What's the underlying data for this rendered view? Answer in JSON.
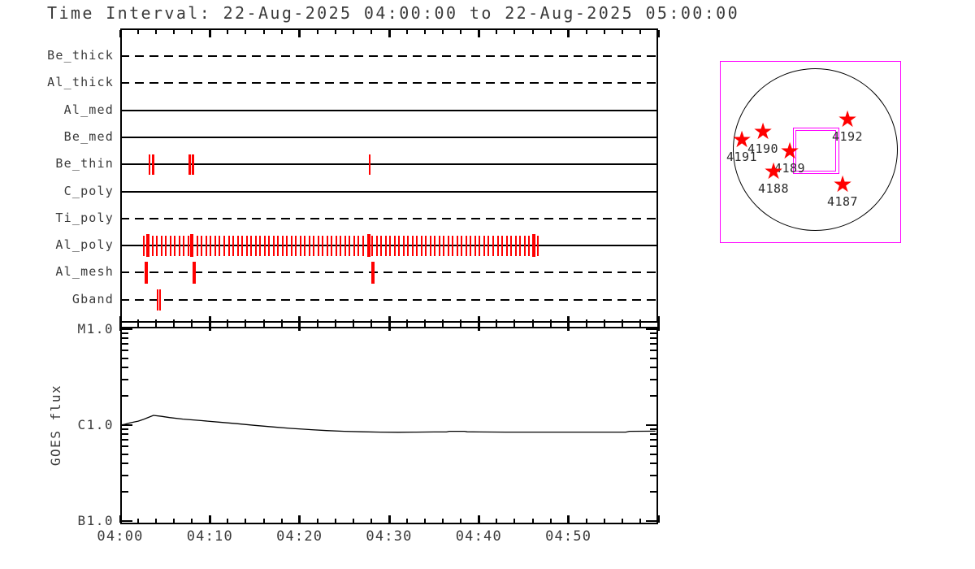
{
  "title": "Time Interval: 22-Aug-2025 04:00:00 to 22-Aug-2025 05:00:00",
  "colors": {
    "background": "#ffffff",
    "axis": "#000000",
    "exposure_tick": "#ff0000",
    "fov_box": "#ff00ff",
    "star": "#ff0000"
  },
  "icons": {
    "active_region_star": "★"
  },
  "chart_data": [
    {
      "type": "table",
      "name": "xrt_filter_timeline",
      "x_axis": {
        "start": "04:00",
        "end": "05:00",
        "duration_min": 60,
        "major_tick_step_min": 10,
        "minor_tick_step_min": 2,
        "tick_labels": [
          "04:00",
          "04:10",
          "04:20",
          "04:30",
          "04:40",
          "04:50"
        ]
      },
      "rows": [
        {
          "label": "Be_thick",
          "line_style": "dashed",
          "events_min": []
        },
        {
          "label": "Al_thick",
          "line_style": "dashed",
          "events_min": []
        },
        {
          "label": "Al_med",
          "line_style": "solid",
          "events_min": []
        },
        {
          "label": "Be_med",
          "line_style": "solid",
          "events_min": []
        },
        {
          "label": "Be_thin",
          "line_style": "solid",
          "events_min": [
            3.26,
            3.65,
            7.73,
            8.1,
            27.83
          ],
          "tick_w": 2.5,
          "tick_h": 25
        },
        {
          "label": "C_poly",
          "line_style": "solid",
          "events_min": []
        },
        {
          "label": "Ti_poly",
          "line_style": "dashed",
          "events_min": []
        },
        {
          "label": "Al_poly",
          "line_style": "solid",
          "events_min": [],
          "event_train": {
            "start_min": 2.6,
            "end_min": 46.6,
            "step_min": 0.5
          },
          "thick_events_min": [
            3.1,
            8.0,
            27.7,
            46.1
          ],
          "tick_w": 2,
          "tick_h": 25,
          "thick_tick_w": 4,
          "thick_tick_h": 28
        },
        {
          "label": "Al_mesh",
          "line_style": "dashed",
          "events_min": [
            2.9,
            8.25,
            28.19
          ],
          "tick_w": 4,
          "tick_h": 27
        },
        {
          "label": "Gband",
          "line_style": "dashed",
          "events_min": [
            4.17,
            4.44
          ],
          "tick_w": 2,
          "tick_h": 26
        }
      ]
    },
    {
      "type": "line",
      "name": "goes_flux",
      "ylabel": "GOES flux",
      "yscale": "log",
      "ytick_labels": [
        "M1.0",
        "C1.0",
        "B1.0"
      ],
      "ytick_flux_c": [
        10,
        1,
        0.1
      ],
      "yminor_flux_c": [
        9,
        8,
        7,
        6,
        5,
        4,
        3,
        2,
        0.9,
        0.8,
        0.7,
        0.6,
        0.5,
        0.4,
        0.3,
        0.2
      ],
      "xlabel_ticks": [
        "04:00",
        "04:10",
        "04:20",
        "04:30",
        "04:40",
        "04:50"
      ],
      "series_units": "[minutes after 04:00, flux in C-class units]",
      "series": [
        [
          0,
          1.0
        ],
        [
          0.5,
          1.02
        ],
        [
          1,
          1.05
        ],
        [
          1.5,
          1.075
        ],
        [
          2,
          1.1
        ],
        [
          2.5,
          1.14
        ],
        [
          3,
          1.19
        ],
        [
          3.7,
          1.265
        ],
        [
          4.6,
          1.235
        ],
        [
          5.5,
          1.2
        ],
        [
          7,
          1.155
        ],
        [
          9,
          1.115
        ],
        [
          11,
          1.075
        ],
        [
          13,
          1.035
        ],
        [
          15,
          0.995
        ],
        [
          17,
          0.958
        ],
        [
          19,
          0.925
        ],
        [
          21,
          0.9
        ],
        [
          23,
          0.878
        ],
        [
          25,
          0.862
        ],
        [
          27,
          0.852
        ],
        [
          29,
          0.846
        ],
        [
          31,
          0.843
        ],
        [
          33,
          0.845
        ],
        [
          35,
          0.848
        ],
        [
          36.4,
          0.849
        ],
        [
          36.7,
          0.862
        ],
        [
          38.4,
          0.862
        ],
        [
          38.7,
          0.852
        ],
        [
          40,
          0.848
        ],
        [
          43,
          0.846
        ],
        [
          46,
          0.845
        ],
        [
          49,
          0.845
        ],
        [
          52,
          0.845
        ],
        [
          55,
          0.845
        ],
        [
          56.4,
          0.845
        ],
        [
          56.8,
          0.863
        ],
        [
          58.5,
          0.864
        ],
        [
          59.7,
          0.865
        ]
      ]
    },
    {
      "type": "scatter",
      "name": "solar_disk_map",
      "description": "Full-disk map with NOAA active regions and XRT field-of-view box",
      "active_regions": [
        {
          "id": "4191",
          "x": 27,
          "y": 98
        },
        {
          "id": "4190",
          "x": 53,
          "y": 88
        },
        {
          "id": "4189",
          "x": 86,
          "y": 112
        },
        {
          "id": "4188",
          "x": 66,
          "y": 137
        },
        {
          "id": "4192",
          "x": 157,
          "y": 73
        },
        {
          "id": "4187",
          "x": 151,
          "y": 153
        }
      ],
      "label_dy": 20
    }
  ]
}
